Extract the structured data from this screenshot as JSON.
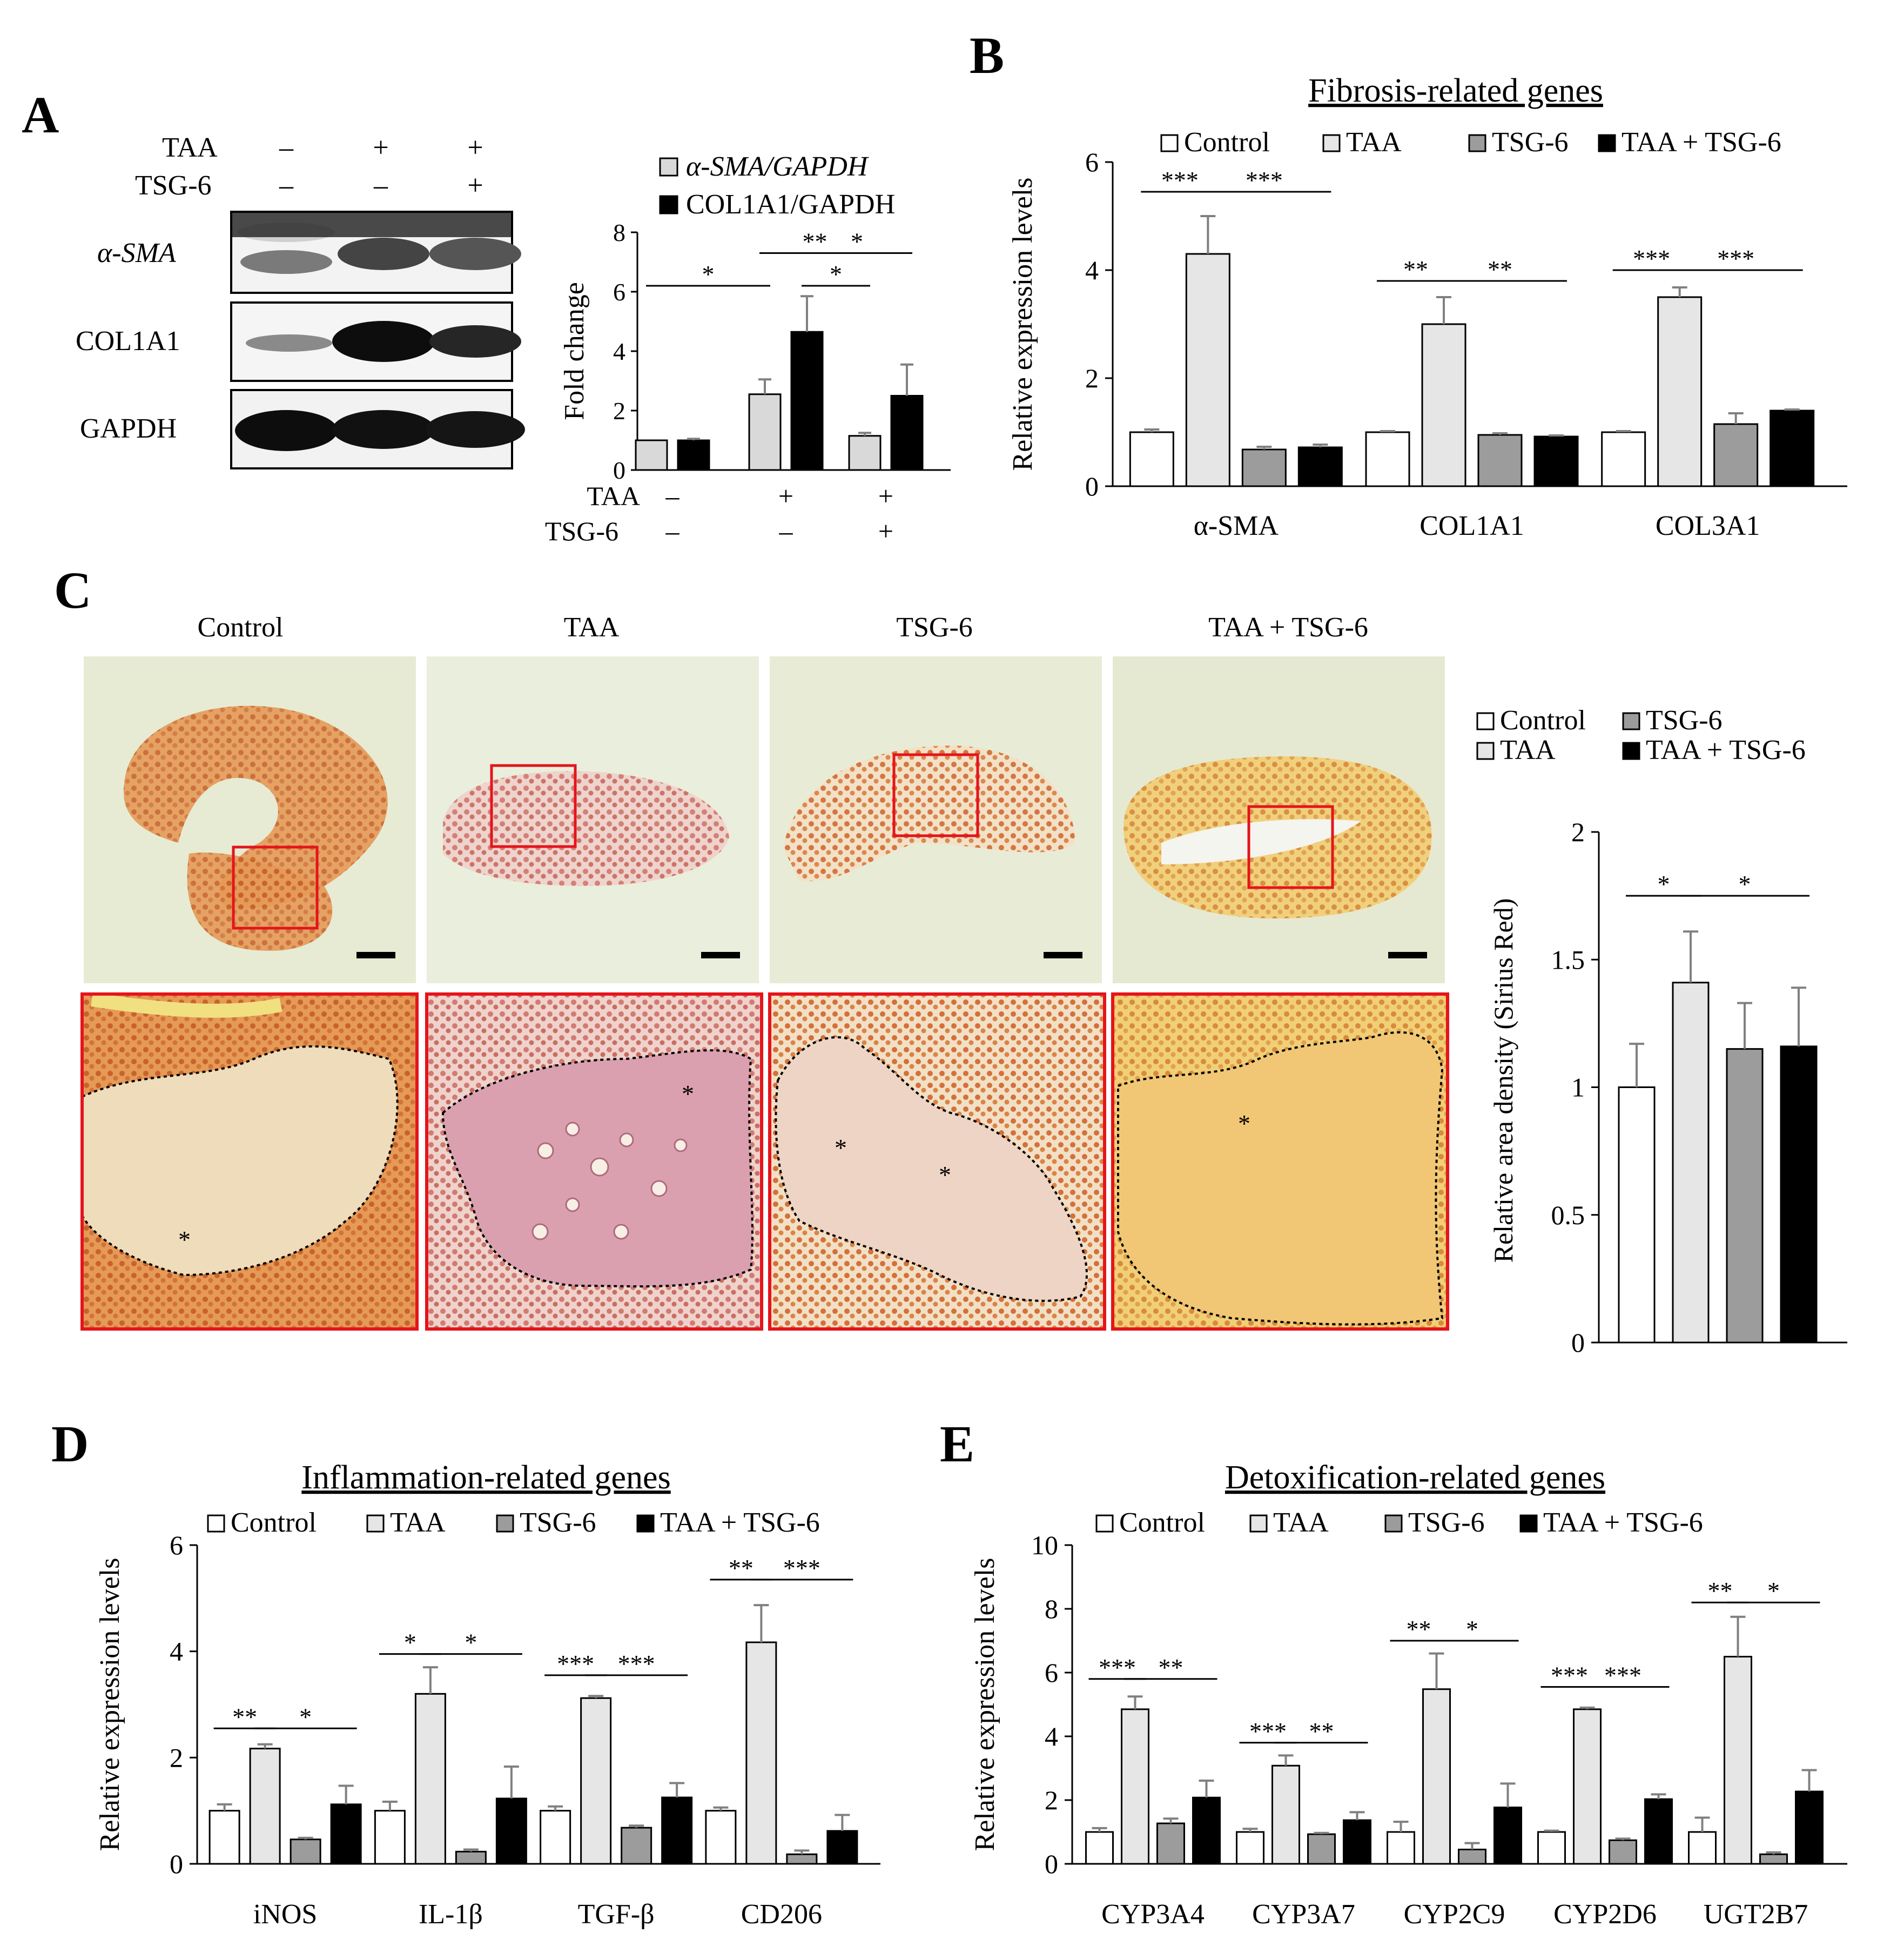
{
  "colors": {
    "control": "#ffffff",
    "taa": "#e6e6e6",
    "tsg6": "#9c9c9c",
    "taa_tsg6": "#000000",
    "roi_box": "#ff1a1a",
    "bar_stroke": "#000000",
    "err": "#808080"
  },
  "panel_a": {
    "letter": "A",
    "row_labels": {
      "taa": "TAA",
      "tsg6": "TSG-6"
    },
    "taa_signs": [
      "–",
      "+",
      "+"
    ],
    "tsg6_signs": [
      "–",
      "–",
      "+"
    ],
    "blot_labels": [
      "α-SMA",
      "COL1A1",
      "GAPDH"
    ]
  },
  "panel_b": {
    "letter": "B"
  },
  "panel_c": {
    "letter": "C",
    "image_titles": [
      "Control",
      "TAA",
      "TSG-6",
      "TAA + TSG-6"
    ],
    "asterisk": "*"
  },
  "panel_d": {
    "letter": "D"
  },
  "panel_e": {
    "letter": "E"
  },
  "chart_data": [
    {
      "id": "A",
      "type": "bar",
      "title": "",
      "ylabel": "Fold change",
      "ylim": [
        0,
        8
      ],
      "yticks": [
        0,
        2,
        4,
        6,
        8
      ],
      "categories": [
        "",
        "",
        ""
      ],
      "x_row_labels": {
        "taa": "TAA",
        "tsg6": "TSG-6"
      },
      "taa_signs": [
        "–",
        "+",
        "+"
      ],
      "tsg6_signs": [
        "–",
        "–",
        "+"
      ],
      "series": [
        {
          "name": "α-SMA/GAPDH",
          "color": "#d9d9d9",
          "values": [
            1.0,
            2.55,
            1.15
          ],
          "errors": [
            0.0,
            0.5,
            0.1
          ]
        },
        {
          "name": "COL1A1/GAPDH",
          "color": "#000000",
          "values": [
            1.0,
            4.65,
            2.5
          ],
          "errors": [
            0.05,
            1.2,
            1.05
          ]
        }
      ],
      "significance": [
        {
          "label": "**",
          "from": [
            1,
            0
          ],
          "to": [
            2,
            0
          ],
          "level": 7.3
        },
        {
          "label": "*",
          "from": [
            1,
            1
          ],
          "to": [
            2,
            1
          ],
          "level": 7.3
        },
        {
          "label": "*",
          "from": [
            0,
            0
          ],
          "to": [
            1,
            0
          ],
          "level": 6.2
        },
        {
          "label": "*",
          "from": [
            1,
            1
          ],
          "to": [
            2,
            0
          ],
          "level": 6.2
        }
      ]
    },
    {
      "id": "B",
      "type": "bar",
      "title": "Fibrosis-related genes",
      "ylabel": "Relative expression levels",
      "ylim": [
        0,
        6
      ],
      "yticks": [
        0,
        2,
        4,
        6
      ],
      "categories": [
        "α-SMA",
        "COL1A1",
        "COL3A1"
      ],
      "legend": [
        "Control",
        "TAA",
        "TSG-6",
        "TAA + TSG-6"
      ],
      "series": [
        {
          "name": "Control",
          "color": "#ffffff",
          "values": [
            1.0,
            1.0,
            1.0
          ],
          "errors": [
            0.05,
            0.02,
            0.02
          ]
        },
        {
          "name": "TAA",
          "color": "#e6e6e6",
          "values": [
            4.3,
            3.0,
            3.5
          ],
          "errors": [
            0.7,
            0.5,
            0.18
          ]
        },
        {
          "name": "TSG-6",
          "color": "#9c9c9c",
          "values": [
            0.68,
            0.95,
            1.15
          ],
          "errors": [
            0.05,
            0.03,
            0.2
          ]
        },
        {
          "name": "TAA + TSG-6",
          "color": "#000000",
          "values": [
            0.72,
            0.92,
            1.4
          ],
          "errors": [
            0.05,
            0.02,
            0.02
          ]
        }
      ],
      "significance": [
        {
          "label": "***",
          "cat": 0,
          "from": 0,
          "to": 1,
          "level": 5.45
        },
        {
          "label": "***",
          "cat": 0,
          "from": 1,
          "to": 3,
          "level": 5.45
        },
        {
          "label": "**",
          "cat": 1,
          "from": 0,
          "to": 1,
          "level": 3.8
        },
        {
          "label": "**",
          "cat": 1,
          "from": 1,
          "to": 3,
          "level": 3.8
        },
        {
          "label": "***",
          "cat": 2,
          "from": 0,
          "to": 1,
          "level": 4.0
        },
        {
          "label": "***",
          "cat": 2,
          "from": 1,
          "to": 3,
          "level": 4.0
        }
      ]
    },
    {
      "id": "C",
      "type": "bar",
      "title": "",
      "ylabel": "Relative area density (Sirius Red)",
      "ylim": [
        0,
        2
      ],
      "yticks": [
        0,
        0.5,
        1,
        1.5,
        2
      ],
      "categories": [
        "Control",
        "TAA",
        "TSG-6",
        "TAA + TSG-6"
      ],
      "legend": [
        "Control",
        "TSG-6",
        "TAA",
        "TAA + TSG-6"
      ],
      "values": [
        1.0,
        1.41,
        1.15,
        1.16
      ],
      "errors": [
        0.17,
        0.2,
        0.18,
        0.23
      ],
      "colors": [
        "#ffffff",
        "#e6e6e6",
        "#9c9c9c",
        "#000000"
      ],
      "significance": [
        {
          "label": "*",
          "from": 0,
          "to": 1,
          "level": 1.75
        },
        {
          "label": "*",
          "from": 1,
          "to": 3,
          "level": 1.75
        }
      ]
    },
    {
      "id": "D",
      "type": "bar",
      "title": "Inflammation-related genes",
      "ylabel": "Relative expression levels",
      "ylim": [
        0,
        6
      ],
      "yticks": [
        0,
        2,
        4,
        6
      ],
      "categories": [
        "iNOS",
        "IL-1β",
        "TGF-β",
        "CD206"
      ],
      "legend": [
        "Control",
        "TAA",
        "TSG-6",
        "TAA + TSG-6"
      ],
      "series": [
        {
          "name": "Control",
          "color": "#ffffff",
          "values": [
            1.0,
            1.0,
            1.0,
            1.0
          ],
          "errors": [
            0.12,
            0.17,
            0.08,
            0.06
          ]
        },
        {
          "name": "TAA",
          "color": "#e6e6e6",
          "values": [
            2.17,
            3.2,
            3.12,
            4.17
          ],
          "errors": [
            0.08,
            0.5,
            0.04,
            0.7
          ]
        },
        {
          "name": "TSG-6",
          "color": "#9c9c9c",
          "values": [
            0.46,
            0.23,
            0.68,
            0.18
          ],
          "errors": [
            0.03,
            0.04,
            0.04,
            0.07
          ]
        },
        {
          "name": "TAA + TSG-6",
          "color": "#000000",
          "values": [
            1.12,
            1.23,
            1.25,
            0.62
          ],
          "errors": [
            0.35,
            0.6,
            0.27,
            0.3
          ]
        }
      ],
      "significance": [
        {
          "label": "**",
          "cat": 0,
          "from": 0,
          "to": 1,
          "level": 2.55
        },
        {
          "label": "*",
          "cat": 0,
          "from": 1,
          "to": 3,
          "level": 2.55
        },
        {
          "label": "*",
          "cat": 1,
          "from": 0,
          "to": 1,
          "level": 3.95
        },
        {
          "label": "*",
          "cat": 1,
          "from": 1,
          "to": 3,
          "level": 3.95
        },
        {
          "label": "***",
          "cat": 2,
          "from": 0,
          "to": 1,
          "level": 3.55
        },
        {
          "label": "***",
          "cat": 2,
          "from": 1,
          "to": 3,
          "level": 3.55
        },
        {
          "label": "**",
          "cat": 3,
          "from": 0,
          "to": 1,
          "level": 5.35
        },
        {
          "label": "***",
          "cat": 3,
          "from": 1,
          "to": 3,
          "level": 5.35
        }
      ]
    },
    {
      "id": "E",
      "type": "bar",
      "title": "Detoxification-related genes",
      "ylabel": "Relative expression levels",
      "ylim": [
        0,
        10
      ],
      "yticks": [
        0,
        2,
        4,
        6,
        8,
        10
      ],
      "categories": [
        "CYP3A4",
        "CYP3A7",
        "CYP2C9",
        "CYP2D6",
        "UGT2B7"
      ],
      "legend": [
        "Control",
        "TAA",
        "TSG-6",
        "TAA + TSG-6"
      ],
      "series": [
        {
          "name": "Control",
          "color": "#ffffff",
          "values": [
            1.0,
            1.0,
            1.0,
            1.0,
            1.0
          ],
          "errors": [
            0.12,
            0.1,
            0.32,
            0.04,
            0.45
          ]
        },
        {
          "name": "TAA",
          "color": "#e6e6e6",
          "values": [
            4.85,
            3.08,
            5.48,
            4.85,
            6.5
          ],
          "errors": [
            0.4,
            0.32,
            1.12,
            0.05,
            1.25
          ]
        },
        {
          "name": "TSG-6",
          "color": "#9c9c9c",
          "values": [
            1.27,
            0.93,
            0.45,
            0.74,
            0.3
          ],
          "errors": [
            0.15,
            0.04,
            0.2,
            0.05,
            0.06
          ]
        },
        {
          "name": "TAA + TSG-6",
          "color": "#000000",
          "values": [
            2.08,
            1.37,
            1.77,
            2.03,
            2.27
          ],
          "errors": [
            0.53,
            0.25,
            0.75,
            0.15,
            0.67
          ]
        }
      ],
      "significance": [
        {
          "label": "***",
          "cat": 0,
          "from": 0,
          "to": 1,
          "level": 5.8
        },
        {
          "label": "**",
          "cat": 0,
          "from": 1,
          "to": 3,
          "level": 5.8
        },
        {
          "label": "***",
          "cat": 1,
          "from": 0,
          "to": 1,
          "level": 3.8
        },
        {
          "label": "**",
          "cat": 1,
          "from": 1,
          "to": 3,
          "level": 3.8
        },
        {
          "label": "**",
          "cat": 2,
          "from": 0,
          "to": 1,
          "level": 7.0
        },
        {
          "label": "*",
          "cat": 2,
          "from": 1,
          "to": 3,
          "level": 7.0
        },
        {
          "label": "***",
          "cat": 3,
          "from": 0,
          "to": 1,
          "level": 5.55
        },
        {
          "label": "***",
          "cat": 3,
          "from": 1,
          "to": 3,
          "level": 5.55
        },
        {
          "label": "**",
          "cat": 4,
          "from": 0,
          "to": 1,
          "level": 8.2
        },
        {
          "label": "*",
          "cat": 4,
          "from": 1,
          "to": 3,
          "level": 8.2
        }
      ]
    }
  ]
}
